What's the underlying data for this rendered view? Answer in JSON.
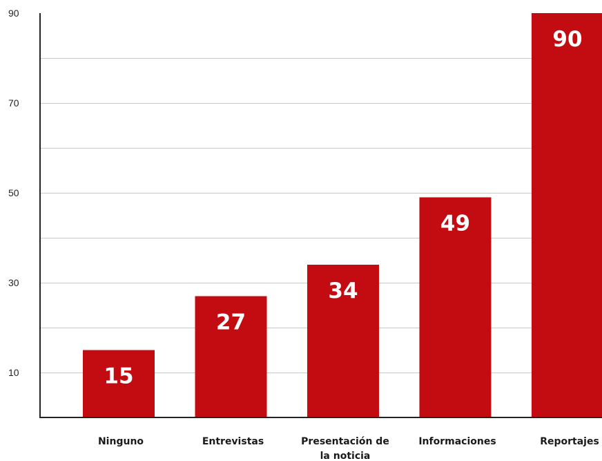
{
  "chart_data": {
    "type": "bar",
    "title": "",
    "xlabel": "",
    "ylabel": "",
    "categories": [
      "Ninguno",
      "Entrevistas",
      "Presentación de la noticia",
      "Informaciones",
      "Reportajes"
    ],
    "category_lines": [
      [
        "Ninguno"
      ],
      [
        "Entrevistas"
      ],
      [
        "Presentación de",
        "la noticia"
      ],
      [
        "Informaciones"
      ],
      [
        "Reportajes"
      ]
    ],
    "values": [
      15,
      27,
      34,
      49,
      90
    ],
    "value_labels": [
      "15",
      "27",
      "34",
      "49",
      "90"
    ],
    "ylim": [
      0,
      90
    ],
    "yticks": [
      10,
      30,
      50,
      70,
      90
    ],
    "gridlines": [
      10,
      20,
      30,
      40,
      50,
      60,
      70,
      80
    ],
    "grid": true,
    "legend": "none",
    "colors": {
      "bar": "#c20c11",
      "grid": "#c8c8c8",
      "axis": "#222222"
    }
  }
}
